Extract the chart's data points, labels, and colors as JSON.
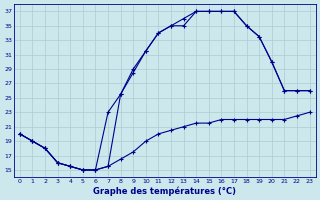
{
  "xlabel": "Graphe des températures (°C)",
  "bg_color": "#cce8ec",
  "line_color": "#00008b",
  "grid_color": "#aaccd0",
  "xlim": [
    -0.5,
    23.5
  ],
  "ylim": [
    14,
    38
  ],
  "yticks": [
    15,
    17,
    19,
    21,
    23,
    25,
    27,
    29,
    31,
    33,
    35,
    37
  ],
  "xticks": [
    0,
    1,
    2,
    3,
    4,
    5,
    6,
    7,
    8,
    9,
    10,
    11,
    12,
    13,
    14,
    15,
    16,
    17,
    18,
    19,
    20,
    21,
    22,
    23
  ],
  "line1_x": [
    0,
    1,
    2,
    3,
    4,
    5,
    6,
    7,
    8,
    9,
    10,
    11,
    12,
    13,
    14,
    15,
    16,
    17,
    18,
    19,
    20,
    21,
    22,
    23
  ],
  "line1_y": [
    20,
    19,
    18,
    16,
    15.5,
    15,
    15,
    15.5,
    16.5,
    17.5,
    19,
    20,
    20.5,
    21,
    21.5,
    21.5,
    22,
    22,
    22,
    22,
    22,
    22,
    22.5,
    23
  ],
  "line2_x": [
    0,
    1,
    2,
    3,
    4,
    5,
    6,
    7,
    8,
    9,
    10,
    11,
    12,
    13,
    14,
    15,
    16,
    17,
    18,
    19,
    20,
    21,
    22,
    23
  ],
  "line2_y": [
    20,
    19,
    18,
    16,
    15.5,
    15,
    15,
    23,
    25.5,
    29,
    31.5,
    34,
    35,
    35,
    37,
    37,
    37,
    37,
    35,
    33.5,
    30,
    26,
    26,
    26
  ],
  "line3_x": [
    0,
    1,
    2,
    3,
    4,
    5,
    6,
    7,
    8,
    9,
    10,
    11,
    12,
    13,
    14,
    15,
    16,
    17,
    18,
    19,
    20,
    21,
    22,
    23
  ],
  "line3_y": [
    20,
    19,
    18,
    16,
    15.5,
    15,
    15,
    15.5,
    25.5,
    28.5,
    31.5,
    34,
    35,
    36,
    37,
    37,
    37,
    37,
    35,
    33.5,
    30,
    26,
    26,
    26
  ]
}
